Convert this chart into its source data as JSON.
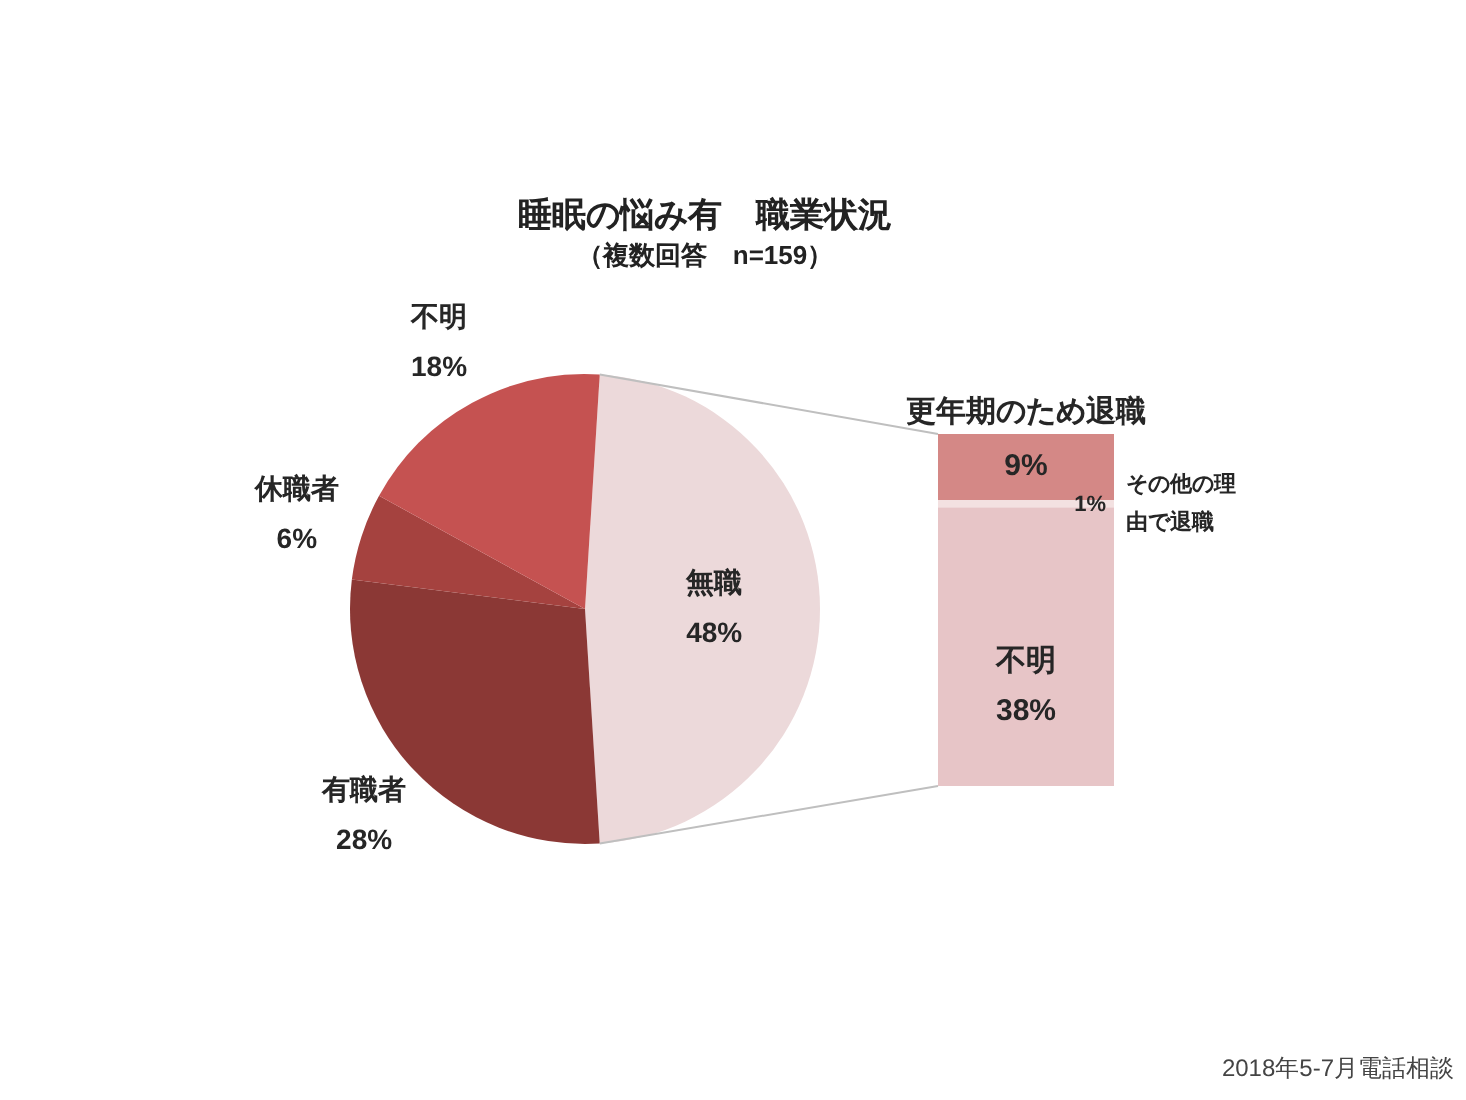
{
  "chart_data": [
    {
      "type": "pie",
      "title": "睡眠の悩み有　職業状況",
      "subtitle": "（複数回答　n=159）",
      "categories": [
        "無職",
        "有職者",
        "休職者",
        "不明"
      ],
      "values": [
        48,
        28,
        6,
        18
      ],
      "value_labels": [
        "48%",
        "28%",
        "6%",
        "18%"
      ],
      "colors": [
        "#ecd9da",
        "#8b3835",
        "#a5423f",
        "#c55251"
      ]
    },
    {
      "type": "bar",
      "categories": [
        null
      ],
      "stacked": true,
      "tick_labels": false,
      "ylim": [
        0,
        48
      ],
      "series": [
        {
          "name": "不明",
          "color": "#e7c5c7",
          "values": [
            38
          ],
          "value_labels": [
            "38%"
          ]
        },
        {
          "name": "その他の理由で退職",
          "color": "#f3e1e1",
          "values": [
            1
          ],
          "value_labels": [
            "1%"
          ]
        },
        {
          "name": "更年期のため退職",
          "color": "#d48886",
          "values": [
            9
          ],
          "value_labels": [
            "9%"
          ]
        }
      ],
      "annotations": [
        "2018年5-7月電話相談"
      ]
    }
  ]
}
